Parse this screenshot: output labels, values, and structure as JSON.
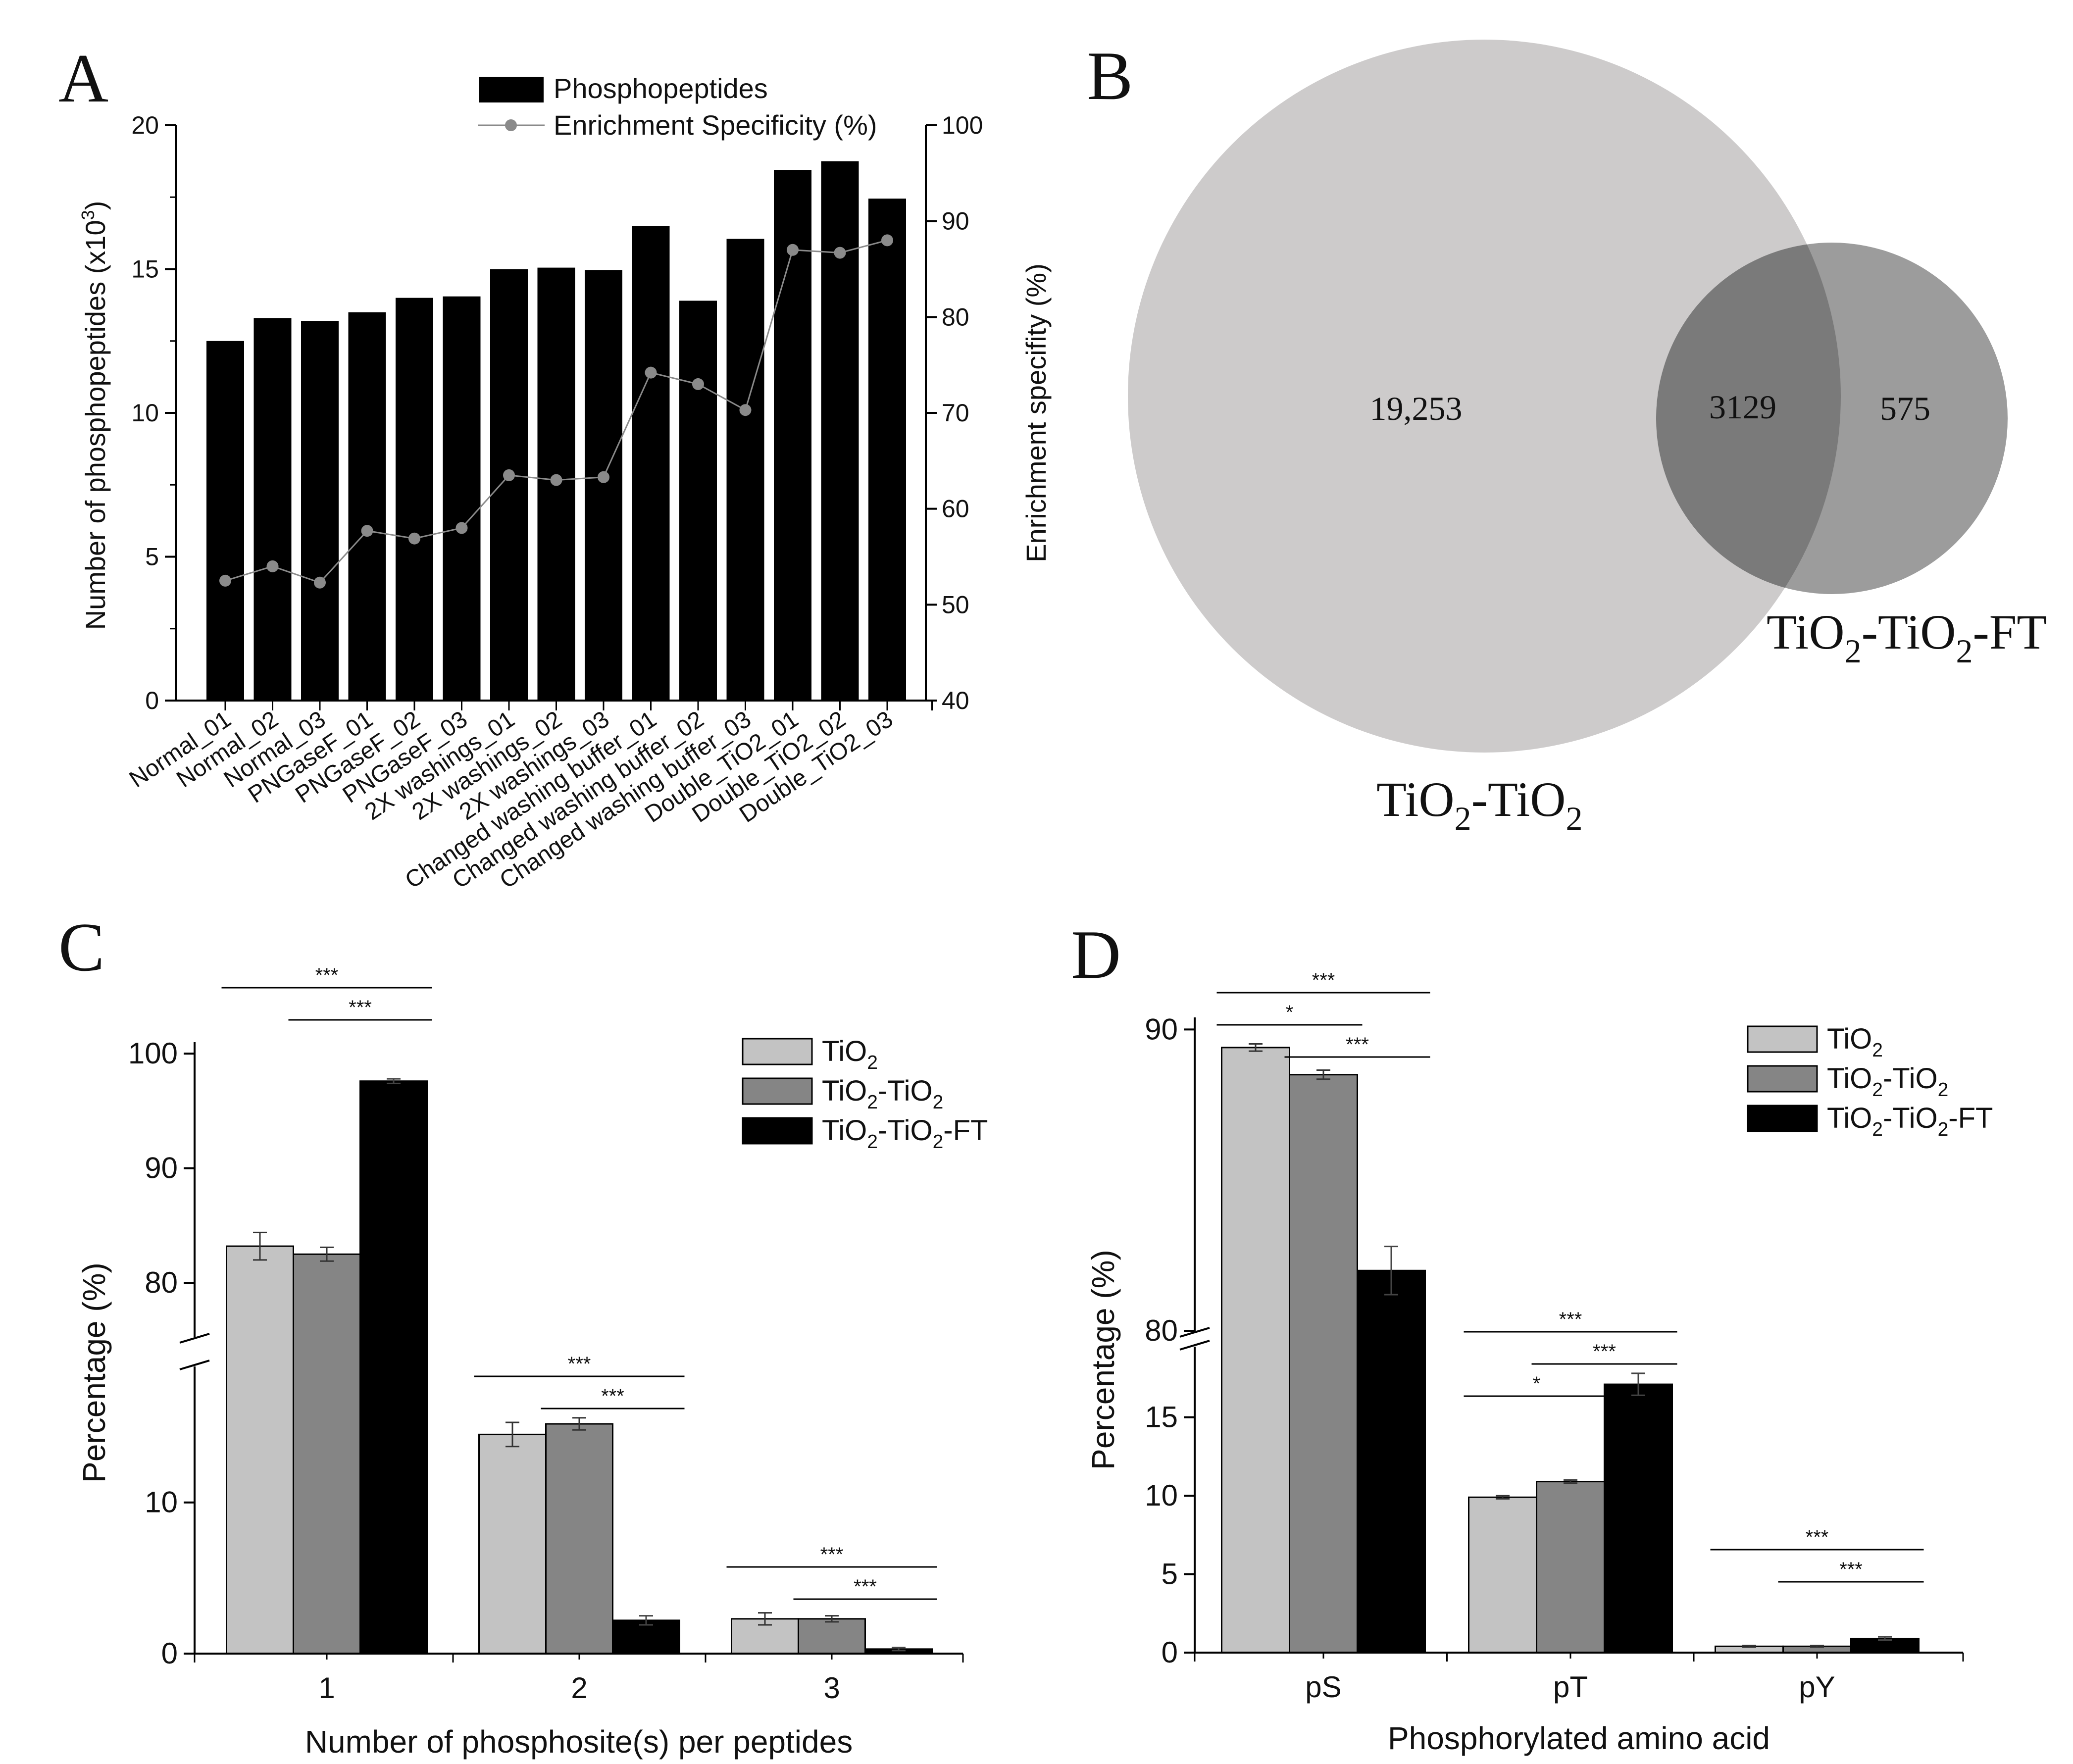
{
  "colors": {
    "light": "#c3c3c3",
    "mid": "#858585",
    "dark": "#000000",
    "line": "#8a8a8a",
    "venn_large": "#cdcbcb",
    "venn_small": "#9c9c9c",
    "venn_overlap": "#7a7a7a"
  },
  "chart_data": [
    {
      "panel": "A",
      "type": "bar",
      "legend": {
        "bars": "Phosphopeptides",
        "line": "Enrichment Specificity (%)"
      },
      "ylabel": "Number of phosphopeptides (x10",
      "ylabel_sup": "3",
      "ylabel_tail": ")",
      "y2label": "Enrichment specifity (%)",
      "ylim": [
        0,
        20
      ],
      "yticks": [
        "0",
        "5",
        "10",
        "15",
        "20"
      ],
      "y2lim": [
        40,
        100
      ],
      "y2ticks": [
        "40",
        "50",
        "60",
        "70",
        "80",
        "90",
        "100"
      ],
      "categories": [
        "Normal_01",
        "Normal_02",
        "Normal_03",
        "PNGaseF_01",
        "PNGaseF_02",
        "PNGaseF_03",
        "2X washings_01",
        "2X washings_02",
        "2X washings_03",
        "Changed washing buffer_01",
        "Changed washing buffer_02",
        "Changed washing buffer_03",
        "Double_TiO2_01",
        "Double_TiO2_02",
        "Double_TiO2_03"
      ],
      "values": [
        12.5,
        13.3,
        13.2,
        13.5,
        14.0,
        14.05,
        15.0,
        15.05,
        14.97,
        16.5,
        13.9,
        16.05,
        18.45,
        18.75,
        17.45
      ],
      "specificity": [
        52.5,
        54.0,
        52.3,
        57.7,
        56.9,
        58.0,
        63.5,
        63.0,
        63.3,
        74.2,
        73.0,
        70.3,
        87.0,
        86.7,
        88.0
      ]
    },
    {
      "panel": "B",
      "type": "venn",
      "sets": [
        "TiO2-TiO2",
        "TiO2-TiO2-FT"
      ],
      "set_labels": [
        [
          "TiO",
          "2",
          "-TiO",
          "2",
          ""
        ],
        [
          "TiO",
          "2",
          "-TiO",
          "2",
          "-FT"
        ]
      ],
      "only_a": "19,253",
      "both": "3129",
      "only_b": "575"
    },
    {
      "panel": "C",
      "type": "bar",
      "xlabel": "Number of phosphosite(s) per peptides",
      "ylabel": "Percentage (%)",
      "categories": [
        "1",
        "2",
        "3"
      ],
      "axis_break": true,
      "upper_ylim": [
        75.3,
        101
      ],
      "upper_yticks": [
        "80",
        "90",
        "100"
      ],
      "lower_ylim": [
        0,
        19
      ],
      "lower_yticks": [
        "0",
        "10"
      ],
      "series": [
        {
          "name": "TiO2",
          "legend": [
            "TiO",
            "2",
            "",
            "",
            ""
          ],
          "values": [
            83.2,
            14.5,
            2.3
          ],
          "errors": [
            1.2,
            0.8,
            0.4
          ]
        },
        {
          "name": "TiO2-TiO2",
          "legend": [
            "TiO",
            "2",
            "-TiO",
            "2",
            ""
          ],
          "values": [
            82.5,
            15.2,
            2.3
          ],
          "errors": [
            0.6,
            0.4,
            0.2
          ]
        },
        {
          "name": "TiO2-TiO2-FT",
          "legend": [
            "TiO",
            "2",
            "-TiO",
            "2",
            "-FT"
          ],
          "values": [
            97.6,
            2.2,
            0.3
          ],
          "errors": [
            0.2,
            0.3,
            0.1
          ]
        }
      ],
      "significance": [
        {
          "group": 0,
          "from": 0,
          "to": 2,
          "label": "***",
          "level": 1
        },
        {
          "group": 0,
          "from": 1,
          "to": 2,
          "label": "***",
          "level": 0
        },
        {
          "group": 1,
          "from": 0,
          "to": 2,
          "label": "***",
          "level": 1
        },
        {
          "group": 1,
          "from": 1,
          "to": 2,
          "label": "***",
          "level": 0
        },
        {
          "group": 2,
          "from": 0,
          "to": 2,
          "label": "***",
          "level": 1
        },
        {
          "group": 2,
          "from": 1,
          "to": 2,
          "label": "***",
          "level": 0
        }
      ]
    },
    {
      "panel": "D",
      "type": "bar",
      "xlabel": "Phosphorylated amino acid",
      "ylabel": "Percentage (%)",
      "categories": [
        "pS",
        "pT",
        "pY"
      ],
      "axis_break": true,
      "upper_ylim": [
        80,
        90.4
      ],
      "upper_yticks": [
        "80",
        "90"
      ],
      "lower_ylim": [
        0,
        19.5
      ],
      "lower_yticks": [
        "0",
        "5",
        "10",
        "15"
      ],
      "series": [
        {
          "name": "TiO2",
          "legend": [
            "TiO",
            "2",
            "",
            "",
            ""
          ],
          "values": [
            89.4,
            9.9,
            0.4
          ],
          "errors": [
            0.12,
            0.1,
            0.05
          ]
        },
        {
          "name": "TiO2-TiO2",
          "legend": [
            "TiO",
            "2",
            "-TiO",
            "2",
            ""
          ],
          "values": [
            88.5,
            10.9,
            0.4
          ],
          "errors": [
            0.15,
            0.1,
            0.05
          ]
        },
        {
          "name": "TiO2-TiO2-FT",
          "legend": [
            "TiO",
            "2",
            "-TiO",
            "2",
            "-FT"
          ],
          "values": [
            82.0,
            17.1,
            0.9
          ],
          "errors": [
            0.8,
            0.7,
            0.1
          ]
        }
      ],
      "significance": [
        {
          "group": 0,
          "from": 0,
          "to": 2,
          "label": "***",
          "level": 2
        },
        {
          "group": 0,
          "from": 0,
          "to": 1,
          "label": "*",
          "level": 1
        },
        {
          "group": 0,
          "from": 1,
          "to": 2,
          "label": "***",
          "level": 0
        },
        {
          "group": 1,
          "from": 0,
          "to": 2,
          "label": "***",
          "level": 2
        },
        {
          "group": 1,
          "from": 0,
          "to": 1,
          "label": "*",
          "level": 0
        },
        {
          "group": 1,
          "from": 1,
          "to": 2,
          "label": "***",
          "level": 1
        },
        {
          "group": 2,
          "from": 0,
          "to": 2,
          "label": "***",
          "level": 1
        },
        {
          "group": 2,
          "from": 1,
          "to": 2,
          "label": "***",
          "level": 0
        }
      ]
    }
  ],
  "panel_letters": [
    "A",
    "B",
    "C",
    "D"
  ]
}
